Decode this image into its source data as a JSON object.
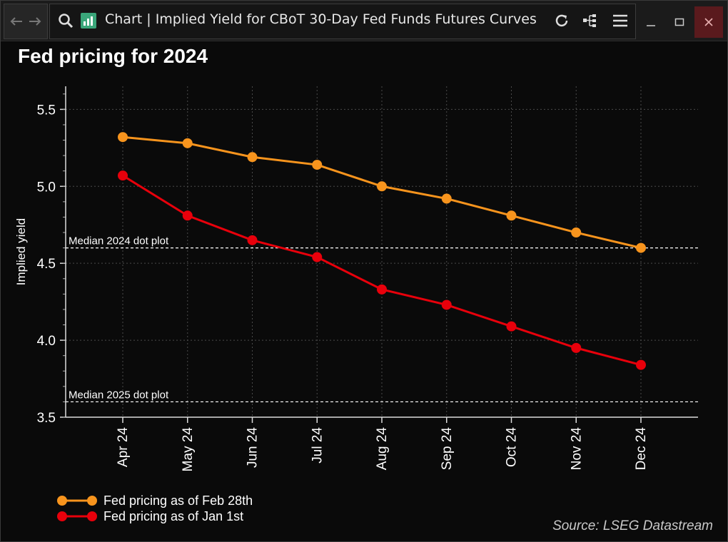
{
  "window": {
    "title": "Chart | Implied Yield for CBoT 30-Day Fed Funds Futures Curves",
    "icons": [
      "back-arrow-icon",
      "forward-arrow-icon",
      "search-icon",
      "chart-app-icon",
      "refresh-icon",
      "hierarchy-icon",
      "menu-icon",
      "minimize-icon",
      "maximize-icon",
      "close-icon"
    ]
  },
  "chart_data": {
    "type": "line",
    "title": "Fed pricing for 2024",
    "ylabel": "Implied yield",
    "xlabel": "",
    "categories": [
      "Apr 24",
      "May 24",
      "Jun 24",
      "Jul 24",
      "Aug 24",
      "Sep 24",
      "Oct 24",
      "Nov 24",
      "Dec 24"
    ],
    "ylim": [
      3.5,
      5.65
    ],
    "yticks": [
      "3.5",
      "4.0",
      "4.5",
      "5.0",
      "5.5"
    ],
    "grid": true,
    "legend_position": "bottom-left",
    "series": [
      {
        "name": "Fed pricing as of Feb 28th",
        "color": "#f7941d",
        "values": [
          5.32,
          5.28,
          5.19,
          5.14,
          5.0,
          4.92,
          4.81,
          4.7,
          4.6
        ]
      },
      {
        "name": "Fed pricing as of Jan 1st",
        "color": "#e8000b",
        "values": [
          5.07,
          4.81,
          4.65,
          4.54,
          4.33,
          4.23,
          4.09,
          3.95,
          3.84
        ]
      }
    ],
    "reference_lines": [
      {
        "label": "Median 2024 dot plot",
        "value": 4.6
      },
      {
        "label": "Median 2025 dot plot",
        "value": 3.6
      }
    ],
    "source": "Source: LSEG Datastream"
  }
}
